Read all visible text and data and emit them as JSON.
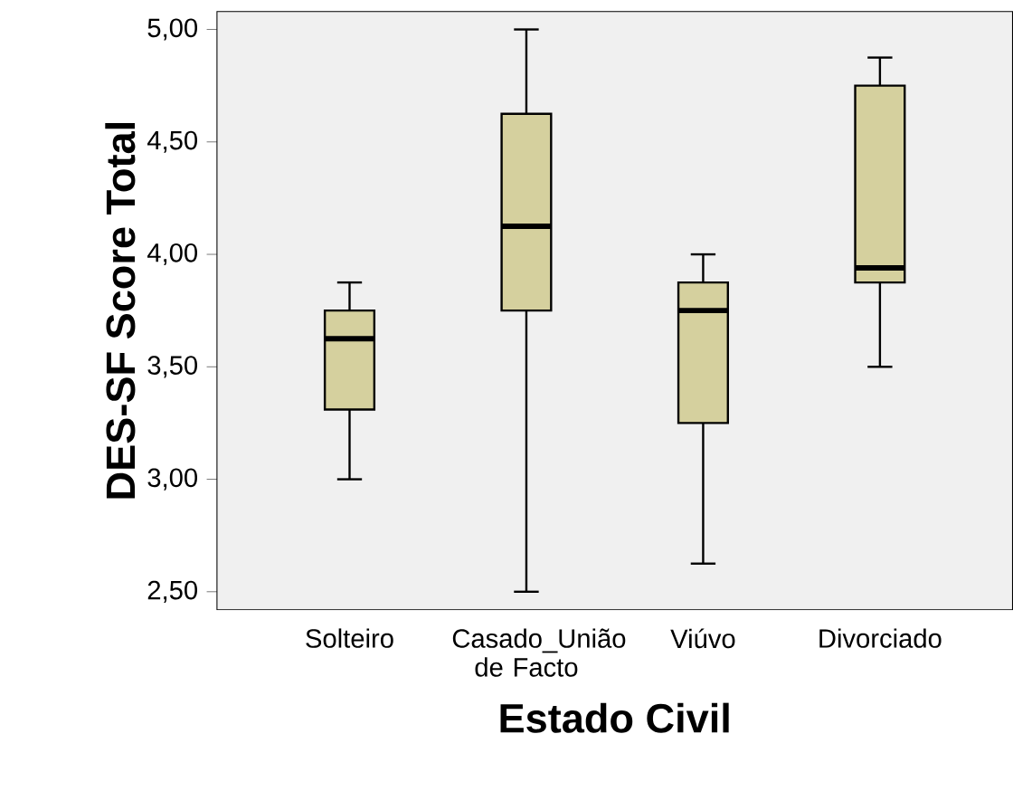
{
  "chart_data": {
    "type": "box",
    "xlabel": "Estado Civil",
    "ylabel": "DES-SF Score Total",
    "categories": [
      "Solteiro",
      "Casado_União de Facto",
      "Viúvo",
      "Divorciado"
    ],
    "boxes": [
      {
        "low": 3.0,
        "q1": 3.31,
        "median": 3.625,
        "q3": 3.75,
        "high": 3.875
      },
      {
        "low": 2.5,
        "q1": 3.75,
        "median": 4.125,
        "q3": 4.625,
        "high": 5.0
      },
      {
        "low": 2.625,
        "q1": 3.25,
        "median": 3.75,
        "q3": 3.875,
        "high": 4.0
      },
      {
        "low": 3.5,
        "q1": 3.875,
        "median": 3.94,
        "q3": 4.75,
        "high": 4.875
      }
    ],
    "color": "#d5d09e",
    "ylim": [
      2.42,
      5.08
    ],
    "yticks": [
      {
        "value": 2.5,
        "label": "2,50"
      },
      {
        "value": 3.0,
        "label": "3,00"
      },
      {
        "value": 3.5,
        "label": "3,50"
      },
      {
        "value": 4.0,
        "label": "4,00"
      },
      {
        "value": 4.5,
        "label": "4,50"
      },
      {
        "value": 5.0,
        "label": "5,00"
      }
    ],
    "grid": false
  }
}
